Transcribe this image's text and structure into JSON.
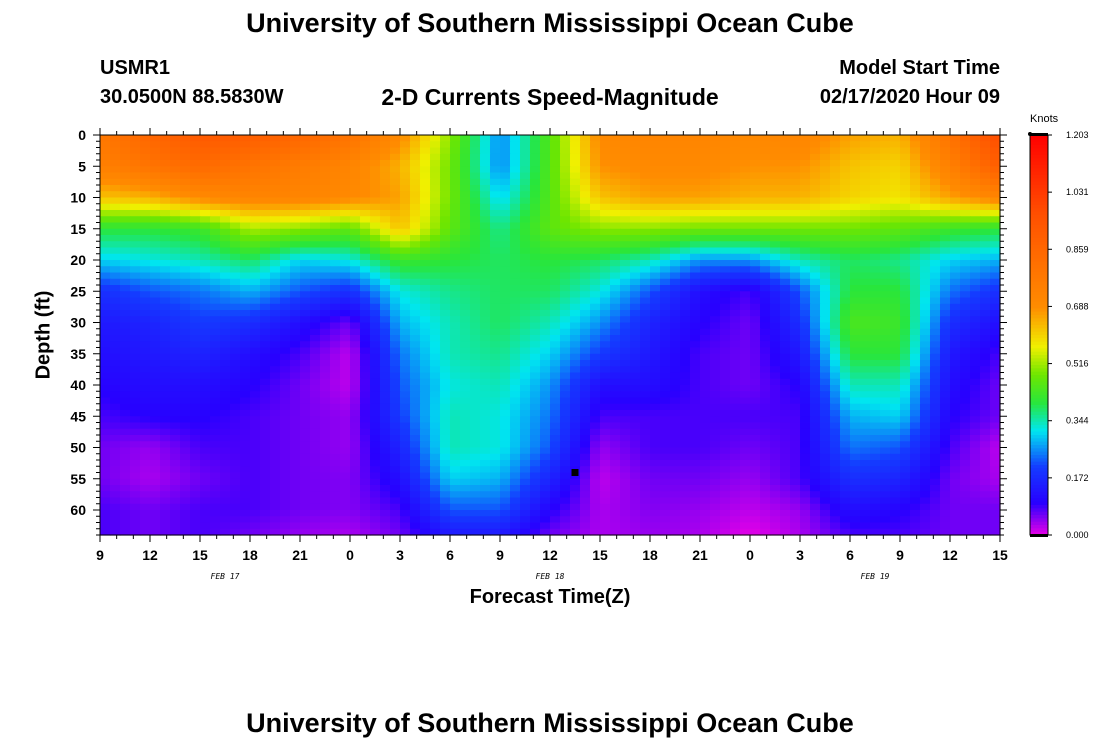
{
  "header": {
    "title": "University of Southern Mississippi Ocean Cube",
    "station_id": "USMR1",
    "station_coords": "30.0500N 88.5830W",
    "subtitle": "2-D Currents Speed-Magnitude",
    "model_start_label": "Model Start Time",
    "model_start_value": "02/17/2020 Hour 09"
  },
  "footer": {
    "title": "University of Southern Mississippi Ocean Cube"
  },
  "chart_data": {
    "type": "heatmap",
    "title": "2-D Currents Speed-Magnitude",
    "xlabel": "Forecast Time(Z)",
    "ylabel": "Depth (ft)",
    "colorbar_label": "Knots",
    "x_tick_labels": [
      "9",
      "12",
      "15",
      "18",
      "21",
      "0",
      "3",
      "6",
      "9",
      "12",
      "15",
      "18",
      "21",
      "0",
      "3",
      "6",
      "9",
      "12",
      "15"
    ],
    "x_hours": [
      0,
      3,
      6,
      9,
      12,
      15,
      18,
      21,
      24,
      27,
      30,
      33,
      36,
      39,
      42,
      45,
      48,
      51,
      54
    ],
    "date_labels": [
      {
        "text": "FEB 17",
        "hour": 7.5
      },
      {
        "text": "FEB 18",
        "hour": 27
      },
      {
        "text": "FEB 19",
        "hour": 46.5
      }
    ],
    "y_ticks": [
      0,
      5,
      10,
      15,
      20,
      25,
      30,
      35,
      40,
      45,
      50,
      55,
      60
    ],
    "ylim": [
      0,
      64
    ],
    "xlim": [
      0,
      54
    ],
    "colorbar_ticks": [
      "1.203",
      "1.031",
      "0.859",
      "0.688",
      "0.516",
      "0.344",
      "0.172",
      "0.000"
    ],
    "colorbar_range": [
      0.0,
      1.203
    ],
    "marker": {
      "hour": 28.5,
      "depth": 54
    },
    "x_hours_grid": [
      0,
      3,
      6,
      9,
      12,
      15,
      18,
      21,
      24,
      27,
      30,
      33,
      36,
      39,
      42,
      45,
      48,
      51,
      54
    ],
    "depth_grid": [
      0,
      5,
      10,
      15,
      20,
      25,
      30,
      35,
      40,
      45,
      50,
      55,
      60,
      64
    ],
    "speed_knots": [
      [
        0.78,
        0.86,
        0.92,
        0.9,
        0.86,
        0.8,
        0.7,
        0.5,
        0.25,
        0.45,
        0.7,
        0.72,
        0.72,
        0.7,
        0.72,
        0.66,
        0.64,
        0.8,
        0.98
      ],
      [
        0.74,
        0.8,
        0.84,
        0.8,
        0.76,
        0.72,
        0.64,
        0.48,
        0.25,
        0.45,
        0.68,
        0.7,
        0.7,
        0.68,
        0.68,
        0.62,
        0.6,
        0.74,
        0.9
      ],
      [
        0.62,
        0.64,
        0.7,
        0.72,
        0.72,
        0.7,
        0.66,
        0.48,
        0.3,
        0.45,
        0.62,
        0.66,
        0.66,
        0.64,
        0.64,
        0.6,
        0.58,
        0.66,
        0.72
      ],
      [
        0.4,
        0.4,
        0.42,
        0.52,
        0.5,
        0.46,
        0.62,
        0.46,
        0.36,
        0.46,
        0.5,
        0.5,
        0.48,
        0.48,
        0.48,
        0.48,
        0.46,
        0.42,
        0.4
      ],
      [
        0.3,
        0.32,
        0.34,
        0.38,
        0.3,
        0.32,
        0.42,
        0.4,
        0.38,
        0.4,
        0.38,
        0.34,
        0.26,
        0.26,
        0.34,
        0.38,
        0.36,
        0.3,
        0.28
      ],
      [
        0.18,
        0.22,
        0.24,
        0.28,
        0.22,
        0.18,
        0.32,
        0.36,
        0.38,
        0.38,
        0.32,
        0.22,
        0.12,
        0.08,
        0.22,
        0.4,
        0.4,
        0.24,
        0.18
      ],
      [
        0.14,
        0.16,
        0.2,
        0.18,
        0.12,
        0.06,
        0.28,
        0.34,
        0.38,
        0.34,
        0.26,
        0.16,
        0.1,
        0.06,
        0.18,
        0.44,
        0.42,
        0.18,
        0.12
      ],
      [
        0.12,
        0.14,
        0.16,
        0.12,
        0.08,
        0.02,
        0.24,
        0.34,
        0.36,
        0.3,
        0.2,
        0.14,
        0.08,
        0.06,
        0.14,
        0.4,
        0.4,
        0.14,
        0.08
      ],
      [
        0.1,
        0.12,
        0.12,
        0.1,
        0.06,
        0.02,
        0.22,
        0.32,
        0.34,
        0.26,
        0.12,
        0.12,
        0.08,
        0.06,
        0.1,
        0.34,
        0.34,
        0.12,
        0.06
      ],
      [
        0.08,
        0.1,
        0.1,
        0.08,
        0.06,
        0.04,
        0.2,
        0.34,
        0.32,
        0.24,
        0.08,
        0.08,
        0.08,
        0.08,
        0.08,
        0.28,
        0.3,
        0.1,
        0.06
      ],
      [
        0.06,
        0.04,
        0.08,
        0.08,
        0.06,
        0.04,
        0.16,
        0.34,
        0.32,
        0.22,
        0.04,
        0.08,
        0.08,
        0.06,
        0.08,
        0.24,
        0.22,
        0.08,
        0.02
      ],
      [
        0.06,
        0.03,
        0.06,
        0.08,
        0.06,
        0.05,
        0.12,
        0.3,
        0.28,
        0.16,
        0.02,
        0.06,
        0.06,
        0.04,
        0.08,
        0.18,
        0.16,
        0.06,
        0.03
      ],
      [
        0.08,
        0.06,
        0.08,
        0.08,
        0.06,
        0.05,
        0.08,
        0.22,
        0.22,
        0.1,
        0.03,
        0.05,
        0.04,
        0.02,
        0.04,
        0.12,
        0.1,
        0.06,
        0.06
      ],
      [
        0.08,
        0.06,
        0.08,
        0.06,
        0.04,
        0.03,
        0.06,
        0.14,
        0.14,
        0.06,
        0.03,
        0.04,
        0.03,
        0.0,
        0.03,
        0.08,
        0.08,
        0.06,
        0.06
      ]
    ]
  }
}
